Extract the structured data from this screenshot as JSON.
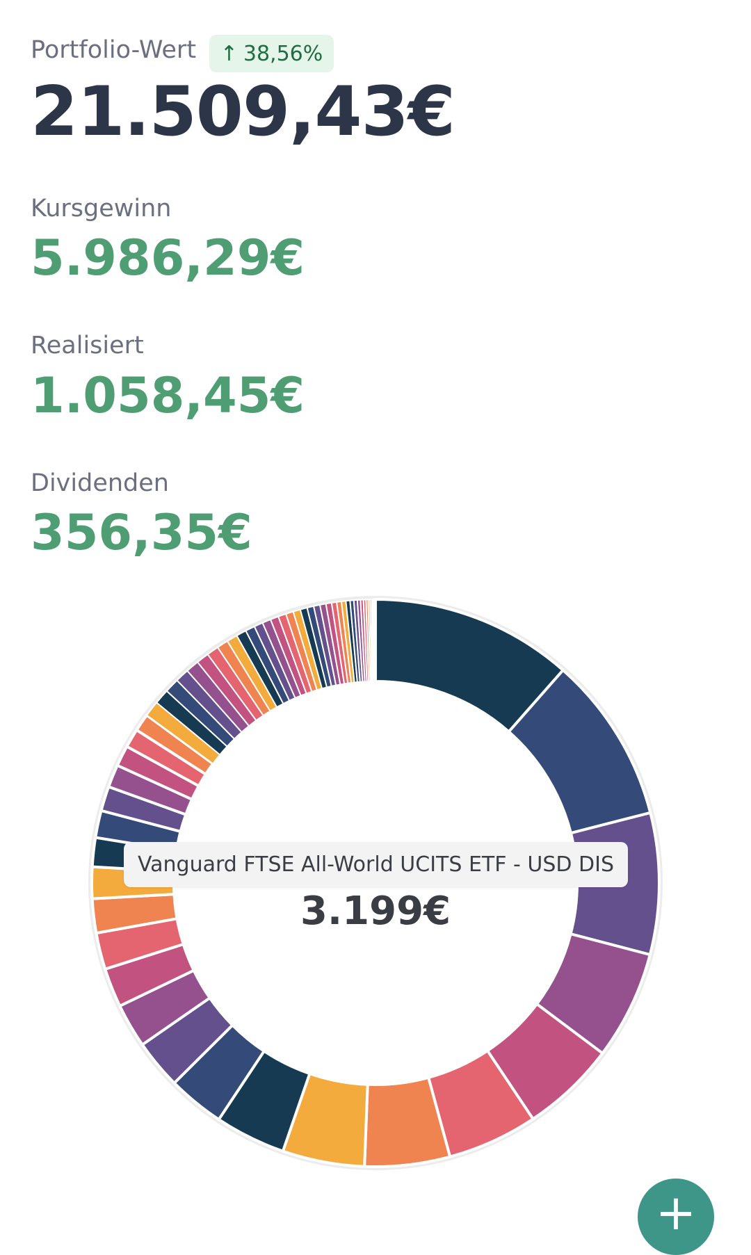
{
  "portfolio": {
    "label": "Portfolio-Wert",
    "change_badge": "38,56%",
    "change_icon": "arrow-up-icon",
    "total": "21.509,43€"
  },
  "stats": [
    {
      "label": "Kursgewinn",
      "value": "5.986,29€"
    },
    {
      "label": "Realisiert",
      "value": "1.058,45€"
    },
    {
      "label": "Dividenden",
      "value": "356,35€"
    }
  ],
  "colors": {
    "positive": "#4f9d72",
    "palette": [
      "#163a52",
      "#344a78",
      "#63508d",
      "#94518e",
      "#c2527f",
      "#e46470",
      "#ef8451",
      "#f2ab3c"
    ]
  },
  "tooltip": {
    "label": "Vanguard FTSE All-World UCITS ETF - USD DIS",
    "value": "3.199€"
  },
  "chart_data": {
    "type": "pie",
    "style": "donut",
    "highlighted_label": "Vanguard FTSE All-World UCITS ETF - USD DIS",
    "highlighted_value": 3199,
    "unit": "€",
    "slice_weights": [
      3199,
      2650,
      2240,
      1720,
      1500,
      1430,
      1350,
      1300,
      1120,
      900,
      780,
      700,
      620,
      580,
      540,
      500,
      460,
      430,
      390,
      360,
      330,
      300,
      280,
      250,
      240,
      230,
      220,
      210,
      200,
      190,
      180,
      170,
      160,
      150,
      140,
      135,
      130,
      125,
      120,
      115,
      110,
      105,
      100,
      95,
      90,
      80,
      75,
      70,
      65,
      60,
      55,
      50,
      45,
      40,
      35,
      30,
      25,
      20,
      15,
      10,
      8,
      6
    ]
  },
  "fab": {
    "icon": "plus-icon",
    "label": "+"
  }
}
